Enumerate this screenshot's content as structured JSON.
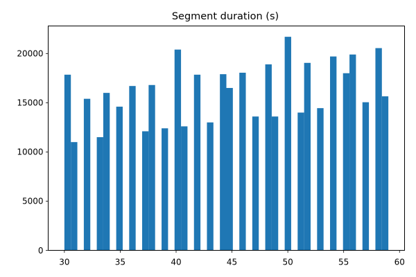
{
  "chart_data": {
    "type": "bar",
    "title": "Segment duration (s)",
    "xlabel": "",
    "ylabel": "",
    "xlim": [
      28.55,
      60.45
    ],
    "ylim": [
      0,
      22800
    ],
    "bar_color": "#1f77b4",
    "grid": false,
    "xticks": [
      30,
      35,
      40,
      45,
      50,
      55,
      60
    ],
    "yticks": [
      0,
      5000,
      10000,
      15000,
      20000
    ],
    "bars": [
      {
        "x_start": 30.0,
        "x_end": 30.58,
        "value": 17850
      },
      {
        "x_start": 30.58,
        "x_end": 31.16,
        "value": 11000
      },
      {
        "x_start": 31.74,
        "x_end": 32.32,
        "value": 15400
      },
      {
        "x_start": 32.9,
        "x_end": 33.48,
        "value": 11500
      },
      {
        "x_start": 33.48,
        "x_end": 34.06,
        "value": 16000
      },
      {
        "x_start": 34.64,
        "x_end": 35.22,
        "value": 14600
      },
      {
        "x_start": 35.8,
        "x_end": 36.38,
        "value": 16700
      },
      {
        "x_start": 36.96,
        "x_end": 37.54,
        "value": 12100
      },
      {
        "x_start": 37.54,
        "x_end": 38.12,
        "value": 16800
      },
      {
        "x_start": 38.7,
        "x_end": 39.28,
        "value": 12400
      },
      {
        "x_start": 39.86,
        "x_end": 40.44,
        "value": 20400
      },
      {
        "x_start": 40.44,
        "x_end": 41.02,
        "value": 12600
      },
      {
        "x_start": 41.6,
        "x_end": 42.18,
        "value": 17850
      },
      {
        "x_start": 42.76,
        "x_end": 43.34,
        "value": 13000
      },
      {
        "x_start": 43.92,
        "x_end": 44.5,
        "value": 17900
      },
      {
        "x_start": 44.5,
        "x_end": 45.08,
        "value": 16500
      },
      {
        "x_start": 45.66,
        "x_end": 46.24,
        "value": 18050
      },
      {
        "x_start": 46.82,
        "x_end": 47.4,
        "value": 13600
      },
      {
        "x_start": 47.98,
        "x_end": 48.56,
        "value": 18900
      },
      {
        "x_start": 48.56,
        "x_end": 49.14,
        "value": 13600
      },
      {
        "x_start": 49.72,
        "x_end": 50.3,
        "value": 21700
      },
      {
        "x_start": 50.88,
        "x_end": 51.46,
        "value": 14000
      },
      {
        "x_start": 51.46,
        "x_end": 52.04,
        "value": 19050
      },
      {
        "x_start": 52.62,
        "x_end": 53.2,
        "value": 14450
      },
      {
        "x_start": 53.78,
        "x_end": 54.36,
        "value": 19700
      },
      {
        "x_start": 54.94,
        "x_end": 55.52,
        "value": 18000
      },
      {
        "x_start": 55.52,
        "x_end": 56.1,
        "value": 19900
      },
      {
        "x_start": 56.68,
        "x_end": 57.26,
        "value": 15050
      },
      {
        "x_start": 57.84,
        "x_end": 58.42,
        "value": 20550
      },
      {
        "x_start": 58.42,
        "x_end": 59.0,
        "value": 15650
      }
    ]
  }
}
